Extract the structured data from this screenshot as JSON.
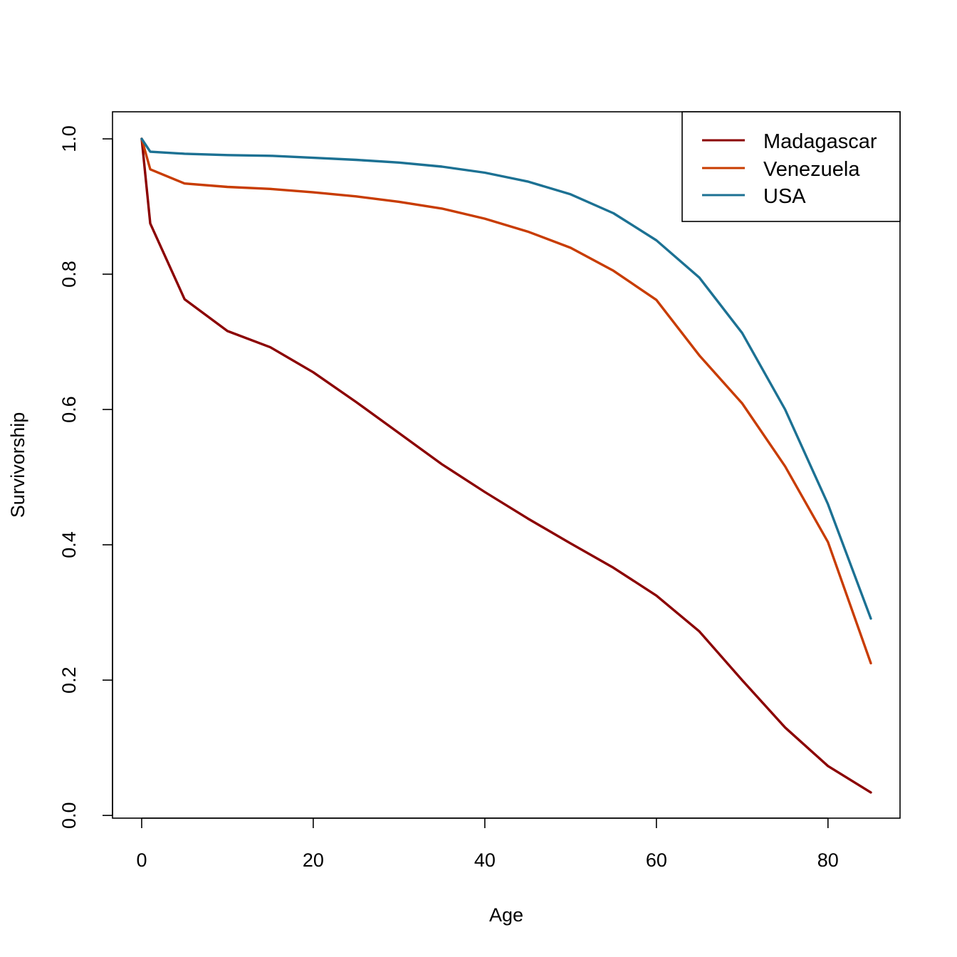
{
  "chart_data": {
    "type": "line",
    "title": "",
    "xlabel": "Age",
    "ylabel": "Survivorship",
    "xlim": [
      -3.4,
      88.4
    ],
    "ylim": [
      -0.004,
      1.04
    ],
    "x_ticks": [
      0,
      20,
      40,
      60,
      80
    ],
    "x_tick_labels": [
      "0",
      "20",
      "40",
      "60",
      "80"
    ],
    "y_ticks": [
      0.0,
      0.2,
      0.4,
      0.6,
      0.8,
      1.0
    ],
    "y_tick_labels": [
      "0.0",
      "0.2",
      "0.4",
      "0.6",
      "0.8",
      "1.0"
    ],
    "grid": false,
    "legend_position": "top-right",
    "x": [
      0,
      1,
      5,
      10,
      15,
      20,
      25,
      30,
      35,
      40,
      45,
      50,
      55,
      60,
      65,
      70,
      75,
      80,
      85
    ],
    "series": [
      {
        "name": "Madagascar",
        "color": "#8B0000",
        "values": [
          1.0,
          0.875,
          0.763,
          0.716,
          0.692,
          0.655,
          0.611,
          0.565,
          0.519,
          0.478,
          0.439,
          0.402,
          0.366,
          0.325,
          0.272,
          0.2,
          0.13,
          0.073,
          0.034
        ]
      },
      {
        "name": "Venezuela",
        "color": "#C83C00",
        "values": [
          1.0,
          0.955,
          0.934,
          0.929,
          0.926,
          0.921,
          0.915,
          0.907,
          0.897,
          0.882,
          0.863,
          0.839,
          0.805,
          0.762,
          0.68,
          0.609,
          0.516,
          0.404,
          0.225
        ]
      },
      {
        "name": "USA",
        "color": "#1C7193",
        "values": [
          1.0,
          0.981,
          0.978,
          0.976,
          0.975,
          0.972,
          0.969,
          0.965,
          0.959,
          0.95,
          0.937,
          0.918,
          0.89,
          0.85,
          0.795,
          0.713,
          0.6,
          0.46,
          0.291
        ]
      }
    ]
  }
}
